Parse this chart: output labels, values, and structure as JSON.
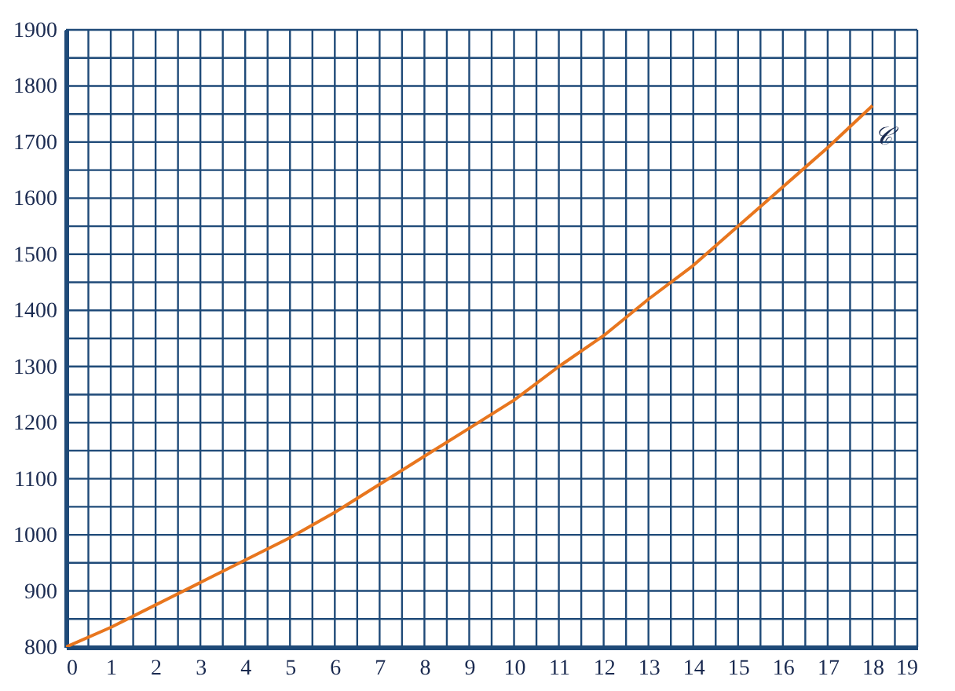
{
  "chart_data": {
    "type": "line",
    "x": [
      0,
      1,
      2,
      3,
      4,
      5,
      6,
      7,
      8,
      9,
      10,
      11,
      12,
      13,
      14,
      15,
      16,
      17,
      18
    ],
    "series": [
      {
        "name": "𝒞",
        "color": "#e8761e",
        "values": [
          800,
          835,
          875,
          915,
          955,
          995,
          1040,
          1090,
          1140,
          1190,
          1240,
          1300,
          1355,
          1420,
          1480,
          1550,
          1620,
          1690,
          1765
        ]
      }
    ],
    "xlim": [
      0,
      19
    ],
    "ylim": [
      800,
      1900
    ],
    "xticks": [
      0,
      {
        "value": 0.5,
        "label": null
      },
      1,
      {
        "value": 1.5,
        "label": null
      },
      2,
      {
        "value": 2.5,
        "label": null
      },
      3,
      {
        "value": 3.5,
        "label": null
      },
      4,
      {
        "value": 4.5,
        "label": null
      },
      5,
      {
        "value": 5.5,
        "label": null
      },
      6,
      {
        "value": 6.5,
        "label": null
      },
      7,
      {
        "value": 7.5,
        "label": null
      },
      8,
      {
        "value": 8.5,
        "label": null
      },
      9,
      {
        "value": 9.5,
        "label": null
      },
      10,
      {
        "value": 10.5,
        "label": null
      },
      11,
      {
        "value": 11.5,
        "label": null
      },
      12,
      {
        "value": 12.5,
        "label": null
      },
      13,
      {
        "value": 13.5,
        "label": null
      },
      14,
      {
        "value": 14.5,
        "label": null
      },
      15,
      {
        "value": 15.5,
        "label": null
      },
      16,
      {
        "value": 16.5,
        "label": null
      },
      17,
      {
        "value": 17.5,
        "label": null
      },
      18,
      {
        "value": 18.5,
        "label": null
      },
      19
    ],
    "yticks": [
      800,
      {
        "value": 850,
        "label": null
      },
      900,
      {
        "value": 950,
        "label": null
      },
      1000,
      {
        "value": 1050,
        "label": null
      },
      1100,
      {
        "value": 1150,
        "label": null
      },
      1200,
      {
        "value": 1250,
        "label": null
      },
      1300,
      {
        "value": 1350,
        "label": null
      },
      1400,
      {
        "value": 1450,
        "label": null
      },
      1500,
      {
        "value": 1550,
        "label": null
      },
      1600,
      {
        "value": 1650,
        "label": null
      },
      1700,
      {
        "value": 1750,
        "label": null
      },
      1800,
      {
        "value": 1850,
        "label": null
      },
      1900
    ],
    "grid": true,
    "marker": "none"
  }
}
